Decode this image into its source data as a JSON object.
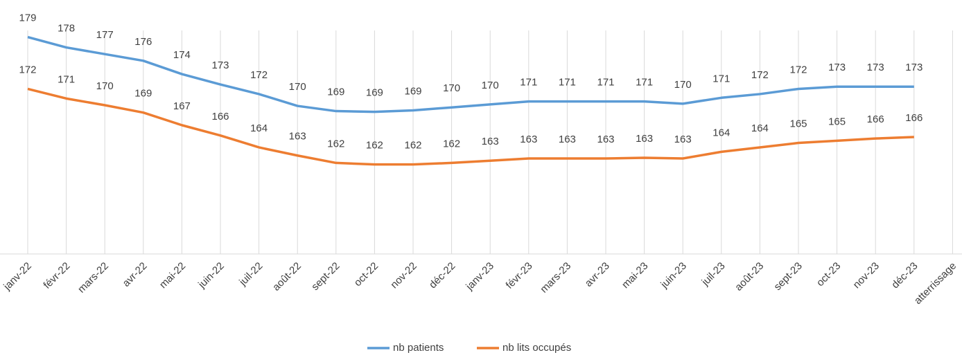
{
  "chart_data": {
    "type": "line",
    "categories": [
      "janv-22",
      "févr-22",
      "mars-22",
      "avr-22",
      "mai-22",
      "juin-22",
      "juil-22",
      "août-22",
      "sept-22",
      "oct-22",
      "nov-22",
      "déc-22",
      "janv-23",
      "févr-23",
      "mars-23",
      "avr-23",
      "mai-23",
      "juin-23",
      "juil-23",
      "août-23",
      "sept-23",
      "oct-23",
      "nov-23",
      "déc-23",
      "atterrissage"
    ],
    "series": [
      {
        "name": "nb patients",
        "color": "#5b9bd5",
        "values": [
          179.3,
          177.9,
          177.0,
          176.1,
          174.3,
          172.9,
          171.6,
          170.0,
          169.3,
          169.2,
          169.4,
          169.8,
          170.2,
          170.6,
          170.6,
          170.6,
          170.6,
          170.3,
          171.1,
          171.6,
          172.3,
          172.6,
          172.6,
          172.6,
          null
        ],
        "value_labels": [
          "179",
          "178",
          "177",
          "176",
          "174",
          "173",
          "172",
          "170",
          "169",
          "169",
          "169",
          "170",
          "170",
          "171",
          "171",
          "171",
          "171",
          "170",
          "171",
          "172",
          "172",
          "173",
          "173",
          "173",
          null
        ]
      },
      {
        "name": "nb lits occupés",
        "color": "#ed7d31",
        "values": [
          172.3,
          171.0,
          170.1,
          169.1,
          167.4,
          166.0,
          164.4,
          163.3,
          162.3,
          162.1,
          162.1,
          162.3,
          162.6,
          162.9,
          162.9,
          162.9,
          163.0,
          162.9,
          163.8,
          164.4,
          165.0,
          165.3,
          165.6,
          165.8,
          null
        ],
        "value_labels": [
          "172",
          "171",
          "170",
          "169",
          "167",
          "166",
          "164",
          "163",
          "162",
          "162",
          "162",
          "162",
          "163",
          "163",
          "163",
          "163",
          "163",
          "163",
          "164",
          "164",
          "165",
          "165",
          "166",
          "166",
          null
        ]
      }
    ],
    "ylim": [
      150,
      183
    ],
    "grid": true,
    "legend": "bottom"
  }
}
